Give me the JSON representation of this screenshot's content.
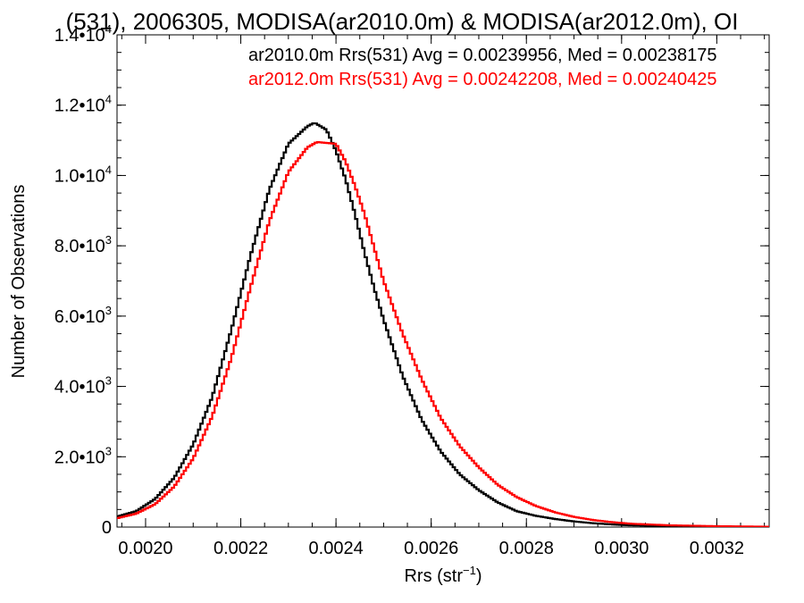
{
  "chart_data": {
    "type": "line",
    "title": "(531), 2006305, MODISA(ar2010.0m) & MODISA(ar2012.0m), OI",
    "xlabel": "Rrs (str",
    "xlabel_sup": "−1",
    "xlabel_end": ")",
    "ylabel": "Number of Observations",
    "xlim": [
      0.00194,
      0.00331
    ],
    "ylim": [
      0,
      14000
    ],
    "x_ticks": [
      0.002,
      0.0022,
      0.0024,
      0.0026,
      0.0028,
      0.003,
      0.0032
    ],
    "x_tick_labels": [
      "0.0020",
      "0.0022",
      "0.0024",
      "0.0026",
      "0.0028",
      "0.0030",
      "0.0032"
    ],
    "y_ticks": [
      0,
      2000,
      4000,
      6000,
      8000,
      10000,
      12000,
      14000
    ],
    "y_tick_labels": [
      {
        "m": "0",
        "e": ""
      },
      {
        "m": "2.0•10",
        "e": "3"
      },
      {
        "m": "4.0•10",
        "e": "3"
      },
      {
        "m": "6.0•10",
        "e": "3"
      },
      {
        "m": "8.0•10",
        "e": "3"
      },
      {
        "m": "1.0•10",
        "e": "4"
      },
      {
        "m": "1.2•10",
        "e": "4"
      },
      {
        "m": "1.4•10",
        "e": "4"
      }
    ],
    "legend_position": "top-right",
    "series": [
      {
        "name": "ar2010.0m Rrs(531) Avg = 0.00239956, Med = 0.00238175",
        "color": "#000000",
        "points": [
          [
            0.00194,
            300
          ],
          [
            0.00198,
            450
          ],
          [
            0.00202,
            800
          ],
          [
            0.00206,
            1400
          ],
          [
            0.0021,
            2350
          ],
          [
            0.00214,
            3700
          ],
          [
            0.00218,
            5600
          ],
          [
            0.00222,
            7700
          ],
          [
            0.00226,
            9600
          ],
          [
            0.0023,
            10900
          ],
          [
            0.00234,
            11400
          ],
          [
            0.002355,
            11500
          ],
          [
            0.00238,
            11300
          ],
          [
            0.0024,
            10700
          ],
          [
            0.00242,
            9900
          ],
          [
            0.00244,
            8900
          ],
          [
            0.00246,
            7800
          ],
          [
            0.00248,
            6800
          ],
          [
            0.0025,
            5900
          ],
          [
            0.00254,
            4300
          ],
          [
            0.00258,
            3050
          ],
          [
            0.00262,
            2150
          ],
          [
            0.00266,
            1500
          ],
          [
            0.0027,
            1050
          ],
          [
            0.00274,
            700
          ],
          [
            0.00278,
            450
          ],
          [
            0.00282,
            320
          ],
          [
            0.00286,
            230
          ],
          [
            0.0029,
            160
          ],
          [
            0.00294,
            110
          ],
          [
            0.00298,
            75
          ],
          [
            0.00302,
            50
          ],
          [
            0.0031,
            30
          ],
          [
            0.0032,
            15
          ],
          [
            0.00331,
            5
          ]
        ]
      },
      {
        "name": "ar2012.0m Rrs(531) Avg = 0.00242208, Med = 0.00240425",
        "color": "#ff0000",
        "points": [
          [
            0.00194,
            250
          ],
          [
            0.00198,
            380
          ],
          [
            0.00202,
            650
          ],
          [
            0.00206,
            1150
          ],
          [
            0.0021,
            1950
          ],
          [
            0.00214,
            3150
          ],
          [
            0.00218,
            4800
          ],
          [
            0.00222,
            6800
          ],
          [
            0.00226,
            8700
          ],
          [
            0.0023,
            10100
          ],
          [
            0.00234,
            10800
          ],
          [
            0.00236,
            10950
          ],
          [
            0.0024,
            10900
          ],
          [
            0.00242,
            10400
          ],
          [
            0.00244,
            9700
          ],
          [
            0.00246,
            8900
          ],
          [
            0.00248,
            7950
          ],
          [
            0.0025,
            7000
          ],
          [
            0.00254,
            5500
          ],
          [
            0.00258,
            4200
          ],
          [
            0.00262,
            3100
          ],
          [
            0.00266,
            2300
          ],
          [
            0.0027,
            1700
          ],
          [
            0.00274,
            1200
          ],
          [
            0.00278,
            850
          ],
          [
            0.00282,
            600
          ],
          [
            0.00286,
            420
          ],
          [
            0.0029,
            290
          ],
          [
            0.00294,
            200
          ],
          [
            0.00298,
            140
          ],
          [
            0.00302,
            95
          ],
          [
            0.0031,
            50
          ],
          [
            0.0032,
            25
          ],
          [
            0.00331,
            10
          ]
        ]
      }
    ]
  }
}
